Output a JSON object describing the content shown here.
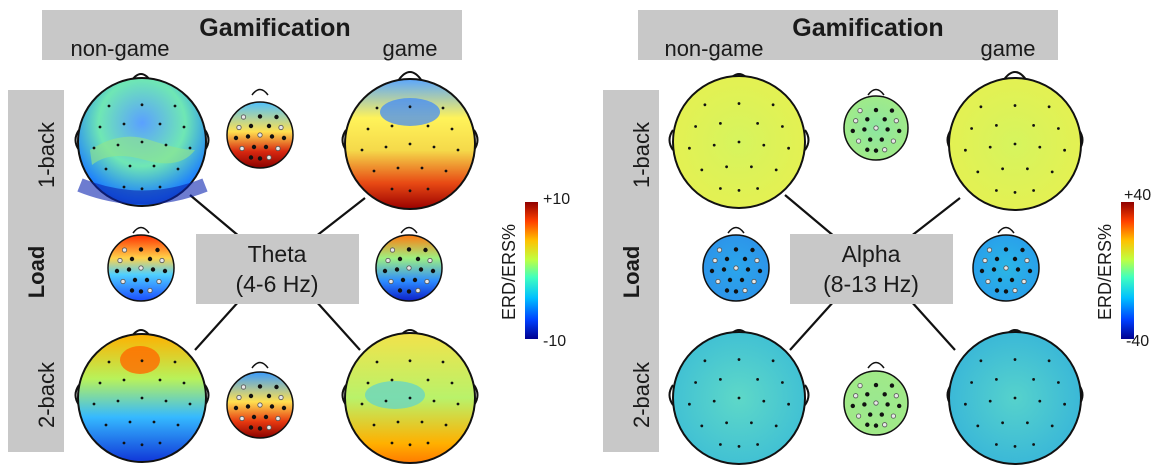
{
  "panels": [
    {
      "header": "Gamification",
      "col_left": "non-game",
      "col_right": "game",
      "row_title": "Load",
      "row_top": "1-back",
      "row_bottom": "2-back",
      "center_line1": "Theta",
      "center_line2": "(4-6 Hz)",
      "colorbar_label": "ERD/ERS%",
      "colorbar_max": "+10",
      "colorbar_min": "-10"
    },
    {
      "header": "Gamification",
      "col_left": "non-game",
      "col_right": "game",
      "row_title": "Load",
      "row_top": "1-back",
      "row_bottom": "2-back",
      "center_line1": "Alpha",
      "center_line2": "(8-13 Hz)",
      "colorbar_label": "ERD/ERS%",
      "colorbar_max": "+40",
      "colorbar_min": "-40"
    }
  ],
  "colors": {
    "colormap": [
      "#00008f",
      "#0040ff",
      "#00c0ff",
      "#40ffbf",
      "#c0ff40",
      "#ffc000",
      "#ff4000",
      "#8f0000"
    ],
    "label_box": "#c8c8c8",
    "contour": "#333333"
  }
}
